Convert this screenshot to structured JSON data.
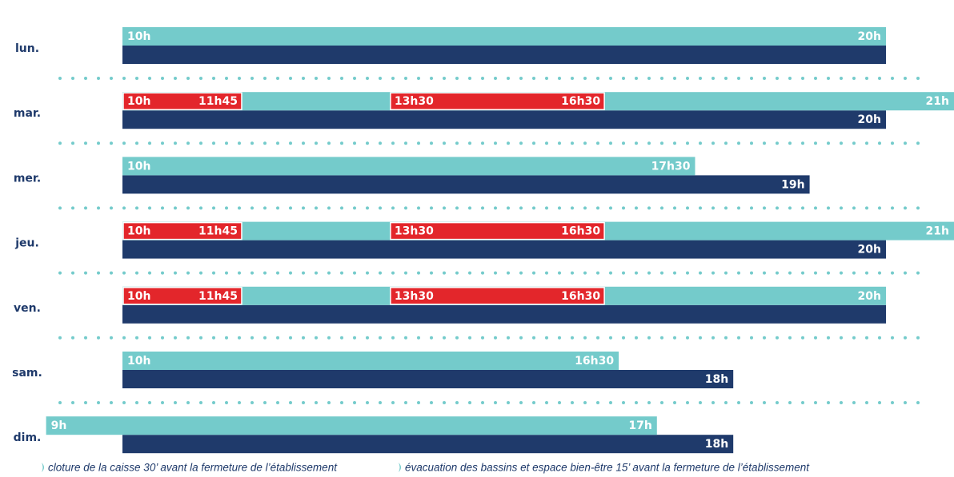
{
  "days": [
    {
      "label": "lun.",
      "top": {
        "start": "10h",
        "end": "20h"
      }
    },
    {
      "label": "mar.",
      "top": {
        "start": "10h",
        "end": "21h",
        "red": [
          [
            "10h",
            "11h45"
          ],
          [
            "13h30",
            "16h30"
          ]
        ]
      },
      "bottom": "20h"
    },
    {
      "label": "mer.",
      "top": {
        "start": "10h",
        "end": "17h30"
      },
      "bottom": "19h"
    },
    {
      "label": "jeu.",
      "top": {
        "start": "10h",
        "end": "21h",
        "red": [
          [
            "10h",
            "11h45"
          ],
          [
            "13h30",
            "16h30"
          ]
        ]
      },
      "bottom": "20h"
    },
    {
      "label": "ven.",
      "top": {
        "start": "10h",
        "end": "20h",
        "red": [
          [
            "10h",
            "11h45"
          ],
          [
            "13h30",
            "16h30"
          ]
        ]
      }
    },
    {
      "label": "sam.",
      "top": {
        "start": "10h",
        "end": "16h30"
      },
      "bottom": "18h"
    },
    {
      "label": "dim.",
      "top": {
        "start": "9h",
        "end": "17h"
      },
      "bottom": "18h"
    }
  ],
  "notes": [
    "cloture de la caisse 30’ avant la fermeture de l’établissement",
    "évacuation des bassins et espace bien-être 15’ avant la fermeture de l’établissement"
  ]
}
